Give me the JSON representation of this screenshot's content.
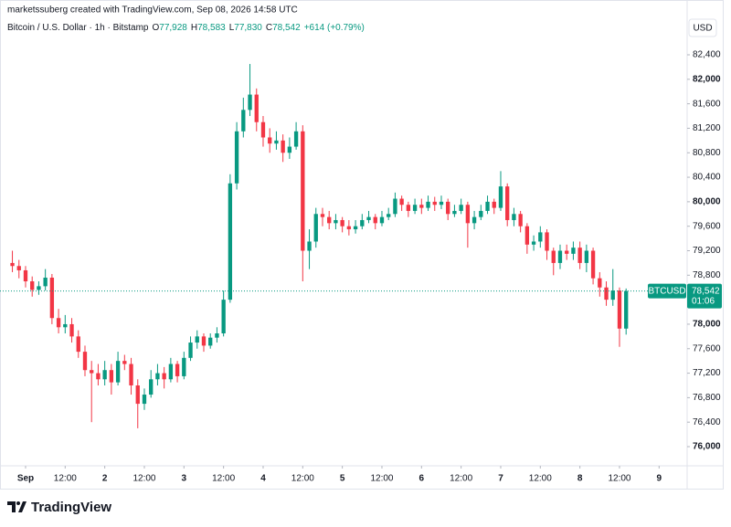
{
  "header": {
    "attribution": "marketssuberg created with TradingView.com, Sep 08, 2026 14:58 UTC",
    "instrument": "Bitcoin / U.S. Dollar · 1h · Bitstamp",
    "open_label": "O",
    "open": "77,928",
    "high_label": "H",
    "high": "78,583",
    "low_label": "L",
    "low": "77,830",
    "close_label": "C",
    "close": "78,542",
    "change": "+614 (+0.79%)",
    "currency": "USD"
  },
  "price_tag": {
    "symbol": "BTCUSD",
    "price": "78,542",
    "countdown": "01:06"
  },
  "footer": {
    "brand": "TradingView"
  },
  "chart_data": {
    "type": "candlestick",
    "up_color": "#089981",
    "down_color": "#f23645",
    "x": [
      -4,
      -2,
      0,
      2,
      4,
      6,
      8,
      10,
      12,
      14,
      16,
      18,
      20,
      22,
      24,
      26,
      28,
      30,
      32,
      34,
      36,
      38,
      40,
      42,
      44,
      46,
      48,
      50,
      52,
      54,
      56,
      58,
      60,
      62,
      64,
      66,
      68,
      70,
      72,
      74,
      76,
      78,
      80,
      82,
      84,
      86,
      88,
      90,
      92,
      94,
      96,
      98,
      100,
      102,
      104,
      106,
      108,
      110,
      112,
      114,
      116,
      118,
      120,
      122,
      124,
      126,
      128,
      130,
      132,
      134,
      136,
      138,
      140,
      142,
      144,
      146,
      148,
      150,
      152,
      154,
      156,
      158,
      160,
      162,
      164,
      166,
      168,
      170,
      172,
      174,
      176,
      178,
      180,
      182
    ],
    "open": [
      79000,
      78950,
      78880,
      78700,
      78560,
      78620,
      78760,
      78100,
      77950,
      78000,
      77800,
      77550,
      77250,
      77200,
      77100,
      77250,
      77050,
      77400,
      77350,
      77000,
      76700,
      76850,
      77100,
      77200,
      77100,
      77350,
      77150,
      77450,
      77700,
      77800,
      77650,
      77780,
      77850,
      78400,
      80300,
      81150,
      81500,
      81750,
      81300,
      81050,
      80950,
      81000,
      80800,
      80900,
      81150,
      79200,
      79350,
      79800,
      79750,
      79650,
      79700,
      79600,
      79550,
      79600,
      79700,
      79750,
      79650,
      79750,
      79800,
      80050,
      79950,
      79850,
      79950,
      79900,
      80000,
      79950,
      80000,
      79800,
      79850,
      79950,
      79650,
      79750,
      79850,
      80000,
      79900,
      80250,
      79700,
      79800,
      79600,
      79300,
      79350,
      79500,
      79200,
      79000,
      79200,
      79150,
      79250,
      79000,
      79200,
      78750,
      78600,
      78400,
      78550,
      77928
    ],
    "high": [
      79200,
      79050,
      78950,
      78780,
      78700,
      78900,
      78820,
      78250,
      78150,
      78100,
      77900,
      77650,
      77400,
      77350,
      77400,
      77350,
      77550,
      77500,
      77450,
      77100,
      76950,
      77250,
      77350,
      77300,
      77450,
      77400,
      77550,
      77800,
      77900,
      77850,
      77850,
      77950,
      78550,
      80450,
      81300,
      81700,
      82250,
      81850,
      81400,
      81200,
      81150,
      81100,
      81050,
      81300,
      81250,
      79550,
      79900,
      79900,
      79850,
      79800,
      79750,
      79700,
      79700,
      79800,
      79850,
      79800,
      79850,
      79900,
      80150,
      80100,
      80000,
      80050,
      80050,
      80100,
      80080,
      80100,
      80050,
      79950,
      80050,
      80000,
      79850,
      79950,
      80100,
      80050,
      80500,
      80300,
      79900,
      79850,
      79650,
      79450,
      79600,
      79550,
      79250,
      79300,
      79300,
      79350,
      79350,
      79300,
      79250,
      78850,
      78700,
      78900,
      78600,
      78583
    ],
    "low": [
      78850,
      78750,
      78600,
      78450,
      78480,
      78550,
      78000,
      77850,
      77850,
      77700,
      77450,
      77150,
      76400,
      77000,
      77000,
      76850,
      77000,
      77250,
      76850,
      76300,
      76600,
      76800,
      77000,
      76950,
      77050,
      77050,
      77100,
      77400,
      77600,
      77550,
      77600,
      77700,
      77800,
      78350,
      80200,
      81050,
      81400,
      81150,
      80900,
      80800,
      80850,
      80650,
      80700,
      80850,
      78700,
      78900,
      79250,
      79600,
      79550,
      79550,
      79500,
      79450,
      79480,
      79550,
      79650,
      79550,
      79600,
      79700,
      79750,
      79850,
      79750,
      79800,
      79800,
      79850,
      79850,
      79880,
      79700,
      79750,
      79800,
      79250,
      79550,
      79700,
      79800,
      79800,
      79850,
      79600,
      79600,
      79500,
      79150,
      79200,
      79250,
      79050,
      78800,
      78900,
      79050,
      79050,
      78900,
      78850,
      78650,
      78450,
      78300,
      78300,
      77630,
      77830
    ],
    "close": [
      78950,
      78880,
      78700,
      78560,
      78620,
      78760,
      78100,
      77950,
      78000,
      77800,
      77550,
      77250,
      77200,
      77100,
      77250,
      77050,
      77400,
      77350,
      77000,
      76700,
      76850,
      77100,
      77200,
      77100,
      77350,
      77150,
      77450,
      77700,
      77800,
      77650,
      77780,
      77850,
      78400,
      80300,
      81150,
      81500,
      81750,
      81300,
      81050,
      80950,
      81000,
      80800,
      80900,
      81150,
      79200,
      79350,
      79800,
      79750,
      79650,
      79700,
      79600,
      79550,
      79600,
      79700,
      79750,
      79650,
      79750,
      79800,
      80050,
      79950,
      79850,
      79950,
      79900,
      80000,
      79950,
      80000,
      79800,
      79850,
      79950,
      79650,
      79750,
      79850,
      80000,
      79900,
      80250,
      79700,
      79800,
      79600,
      79300,
      79350,
      79500,
      79200,
      79000,
      79200,
      79150,
      79250,
      79000,
      79200,
      78750,
      78600,
      78400,
      78550,
      77928,
      78542
    ],
    "xlim": [
      -7.75,
      200.5
    ],
    "xticks": [
      {
        "value": 0,
        "label": "Sep"
      },
      {
        "value": 12,
        "label": "12:00"
      },
      {
        "value": 24,
        "label": "2"
      },
      {
        "value": 36,
        "label": "12:00"
      },
      {
        "value": 48,
        "label": "3"
      },
      {
        "value": 60,
        "label": "12:00"
      },
      {
        "value": 72,
        "label": "4"
      },
      {
        "value": 84,
        "label": "12:00"
      },
      {
        "value": 96,
        "label": "5"
      },
      {
        "value": 108,
        "label": "12:00"
      },
      {
        "value": 120,
        "label": "6"
      },
      {
        "value": 132,
        "label": "12:00"
      },
      {
        "value": 144,
        "label": "7"
      },
      {
        "value": 156,
        "label": "12:00"
      },
      {
        "value": 168,
        "label": "8"
      },
      {
        "value": 180,
        "label": "12:00"
      },
      {
        "value": 192,
        "label": "9"
      }
    ],
    "ylim": [
      75687,
      83295
    ],
    "yticks": [
      {
        "value": 76000,
        "label": "76,000"
      },
      {
        "value": 76400,
        "label": "76,400"
      },
      {
        "value": 76800,
        "label": "76,800"
      },
      {
        "value": 77200,
        "label": "77,200"
      },
      {
        "value": 77600,
        "label": "77,600"
      },
      {
        "value": 78000,
        "label": "78,000"
      },
      {
        "value": 78400,
        "label": "78,400"
      },
      {
        "value": 78800,
        "label": "78,800"
      },
      {
        "value": 79200,
        "label": "79,200"
      },
      {
        "value": 79600,
        "label": "79,600"
      },
      {
        "value": 80000,
        "label": "80,000"
      },
      {
        "value": 80400,
        "label": "80,400"
      },
      {
        "value": 80800,
        "label": "80,800"
      },
      {
        "value": 81200,
        "label": "81,200"
      },
      {
        "value": 81600,
        "label": "81,600"
      },
      {
        "value": 82000,
        "label": "82,000"
      },
      {
        "value": 82400,
        "label": "82,400"
      }
    ]
  }
}
